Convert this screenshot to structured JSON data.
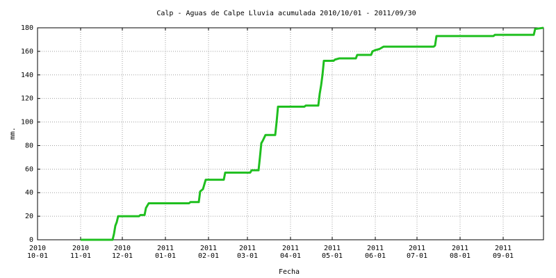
{
  "chart_data": {
    "type": "line",
    "title": "Calp - Aguas de Calpe Lluvia acumulada 2010/10/01 - 2011/09/30",
    "x_label": "Fecha",
    "y_label": "mm.",
    "x": [
      "2010-11-01",
      "2010-11-24",
      "2010-11-25",
      "2010-11-26",
      "2010-11-27",
      "2010-11-28",
      "2010-12-13",
      "2010-12-14",
      "2010-12-17",
      "2010-12-18",
      "2010-12-19",
      "2010-12-20",
      "2011-01-18",
      "2011-01-19",
      "2011-01-25",
      "2011-01-26",
      "2011-01-28",
      "2011-01-30",
      "2011-02-12",
      "2011-02-13",
      "2011-03-03",
      "2011-03-04",
      "2011-03-09",
      "2011-03-10",
      "2011-03-11",
      "2011-03-12",
      "2011-03-14",
      "2011-03-21",
      "2011-03-22",
      "2011-03-23",
      "2011-04-11",
      "2011-04-12",
      "2011-04-21",
      "2011-04-22",
      "2011-04-23",
      "2011-04-24",
      "2011-04-25",
      "2011-05-02",
      "2011-05-03",
      "2011-05-06",
      "2011-05-18",
      "2011-05-19",
      "2011-05-29",
      "2011-05-30",
      "2011-06-01",
      "2011-06-04",
      "2011-06-07",
      "2011-07-13",
      "2011-07-14",
      "2011-07-15",
      "2011-08-25",
      "2011-08-26",
      "2011-09-23",
      "2011-09-24",
      "2011-09-30"
    ],
    "series": [
      {
        "color": "#1fbf1f",
        "values": [
          0,
          0,
          5,
          12,
          15,
          20,
          20,
          21,
          21,
          27,
          29,
          31,
          31,
          32,
          32,
          41,
          43,
          51,
          51,
          57,
          57,
          59,
          59,
          70,
          82,
          84,
          89,
          89,
          100,
          113,
          113,
          114,
          114,
          124,
          131,
          140,
          152,
          152,
          153,
          154,
          154,
          157,
          157,
          160,
          161,
          162,
          164,
          164,
          165,
          173,
          173,
          174,
          174,
          179,
          180
        ]
      }
    ],
    "xlim": [
      "2010-10-01",
      "2011-09-30"
    ],
    "xticks": [
      {
        "value": "2010-10-01",
        "label": "2010\n10-01"
      },
      {
        "value": "2010-11-01",
        "label": "2010\n11-01"
      },
      {
        "value": "2010-12-01",
        "label": "2010\n12-01"
      },
      {
        "value": "2011-01-01",
        "label": "2011\n01-01"
      },
      {
        "value": "2011-02-01",
        "label": "2011\n02-01"
      },
      {
        "value": "2011-03-01",
        "label": "2011\n03-01"
      },
      {
        "value": "2011-04-01",
        "label": "2011\n04-01"
      },
      {
        "value": "2011-05-01",
        "label": "2011\n05-01"
      },
      {
        "value": "2011-06-01",
        "label": "2011\n06-01"
      },
      {
        "value": "2011-07-01",
        "label": "2011\n07-01"
      },
      {
        "value": "2011-08-01",
        "label": "2011\n08-01"
      },
      {
        "value": "2011-09-01",
        "label": "2011\n09-01"
      }
    ],
    "ylim": [
      0,
      180
    ],
    "yticks": [
      0,
      20,
      40,
      60,
      80,
      100,
      120,
      140,
      160,
      180
    ],
    "grid": true
  }
}
